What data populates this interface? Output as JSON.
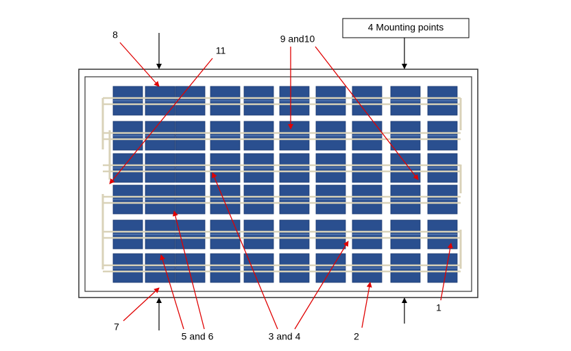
{
  "callouts": [
    "8",
    "11",
    "9 and10",
    "4 Mounting points",
    "7",
    "5 and 6",
    "3 and 4",
    "2",
    "1"
  ]
}
